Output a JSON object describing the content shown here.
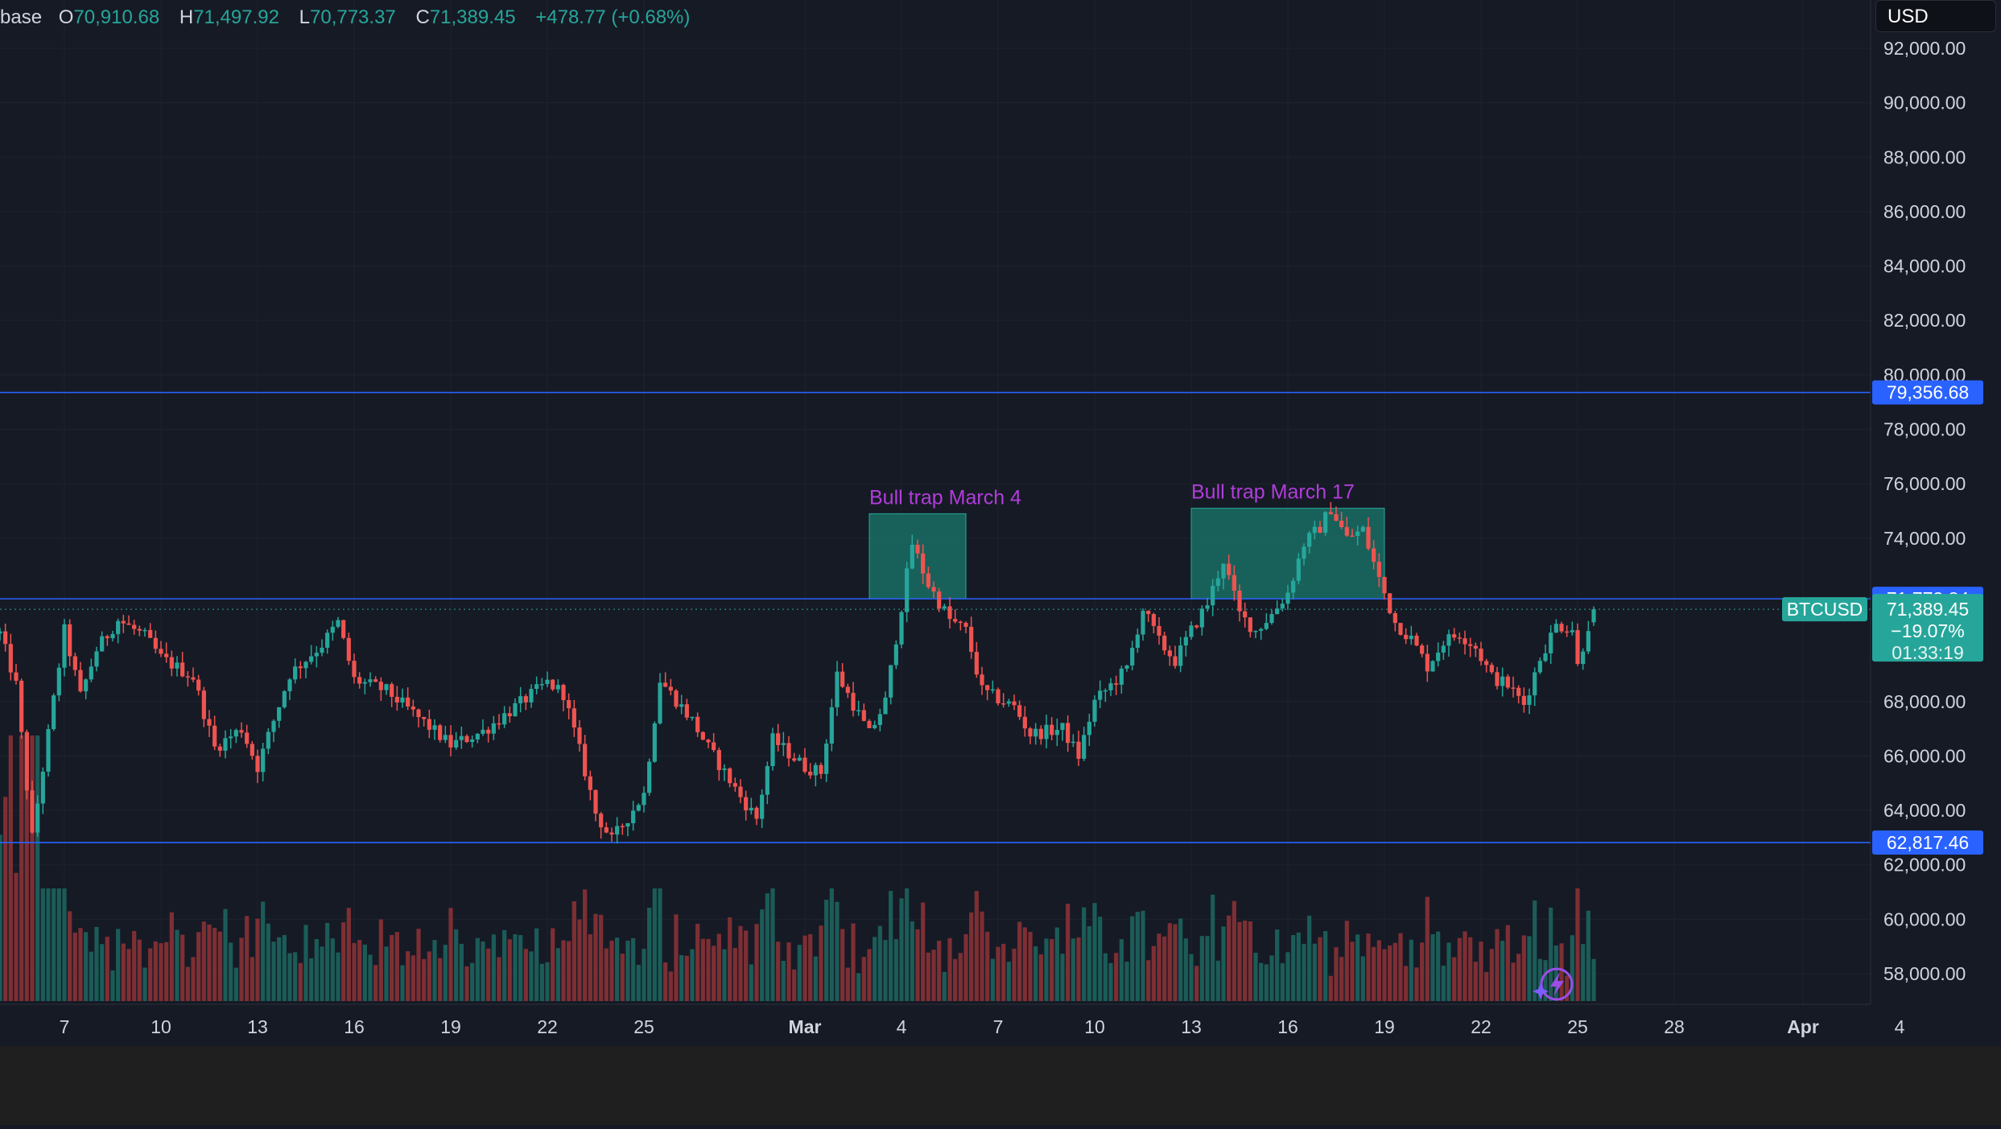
{
  "header": {
    "symbol_fragment": "base",
    "open_key": "O",
    "open": "70,910.68",
    "high_key": "H",
    "high": "71,497.92",
    "low_key": "L",
    "low": "70,773.37",
    "close_key": "C",
    "close": "71,389.45",
    "change": "+478.77 (+0.68%)"
  },
  "currency": "USD",
  "price_axis": {
    "ticks": [
      "92,000.00",
      "90,000.00",
      "88,000.00",
      "86,000.00",
      "84,000.00",
      "82,000.00",
      "80,000.00",
      "78,000.00",
      "76,000.00",
      "74,000.00",
      "68,000.00",
      "66,000.00",
      "64,000.00",
      "62,000.00",
      "60,000.00",
      "58,000.00"
    ],
    "tick_values": [
      92000,
      90000,
      88000,
      86000,
      84000,
      82000,
      80000,
      78000,
      76000,
      74000,
      68000,
      66000,
      64000,
      62000,
      60000,
      58000
    ]
  },
  "time_axis": {
    "labels": [
      "7",
      "10",
      "13",
      "16",
      "19",
      "22",
      "25",
      "Mar",
      "4",
      "7",
      "10",
      "13",
      "16",
      "19",
      "22",
      "25",
      "28",
      "Apr",
      "4"
    ],
    "dates": [
      "2024-02-07",
      "2024-02-10",
      "2024-02-13",
      "2024-02-16",
      "2024-02-19",
      "2024-02-22",
      "2024-02-25",
      "2024-03-01",
      "2024-03-04",
      "2024-03-07",
      "2024-03-10",
      "2024-03-13",
      "2024-03-16",
      "2024-03-19",
      "2024-03-22",
      "2024-03-25",
      "2024-03-28",
      "2024-04-01",
      "2024-04-04"
    ]
  },
  "levels": [
    {
      "value": 79356.68,
      "label": "79,356.68"
    },
    {
      "value": 71773.84,
      "label": "71,773.84"
    },
    {
      "value": 62817.46,
      "label": "62,817.46"
    }
  ],
  "current": {
    "symbol": "BTCUSD",
    "price": 71389.45,
    "price_label": "71,389.45",
    "change_label": "−19.07%",
    "countdown": "01:33:19"
  },
  "annotations": [
    {
      "text": "Bull trap March 4",
      "x_start": "2024-03-03",
      "x_end": "2024-03-06",
      "y_low": 71773.84,
      "y_high": 74900
    },
    {
      "text": "Bull trap March 17",
      "x_start": "2024-03-13",
      "x_end": "2024-03-19",
      "y_low": 71773.84,
      "y_high": 75100
    }
  ],
  "colors": {
    "background": "#161a25",
    "up": "#26a69a",
    "down": "#ef5350",
    "level_line": "#2962ff",
    "annotation_fill": "#1a7a6c",
    "annotation_text": "#b13ddb",
    "axis_text": "#d1d4dc"
  },
  "chart_data": {
    "type": "candlestick",
    "symbol": "BTCUSD",
    "interval": "4h",
    "y_range": [
      57000,
      93000
    ],
    "x_range": [
      "2024-02-05",
      "2024-04-05"
    ],
    "anchors": [
      [
        "2024-02-05T00:00",
        70500
      ],
      [
        "2024-02-05T12:00",
        68600
      ],
      [
        "2024-02-06T00:00",
        63000
      ],
      [
        "2024-02-06T12:00",
        66800
      ],
      [
        "2024-02-07T00:00",
        70600
      ],
      [
        "2024-02-07T12:00",
        68200
      ],
      [
        "2024-02-08T00:00",
        69900
      ],
      [
        "2024-02-08T16:00",
        71000
      ],
      [
        "2024-02-09T12:00",
        70400
      ],
      [
        "2024-02-10T00:00",
        69600
      ],
      [
        "2024-02-11T00:00",
        68900
      ],
      [
        "2024-02-11T16:00",
        66300
      ],
      [
        "2024-02-12T12:00",
        67000
      ],
      [
        "2024-02-13T00:00",
        65600
      ],
      [
        "2024-02-14T00:00",
        69000
      ],
      [
        "2024-02-15T00:00",
        70100
      ],
      [
        "2024-02-15T12:00",
        70900
      ],
      [
        "2024-02-16T00:00",
        68800
      ],
      [
        "2024-02-17T00:00",
        68400
      ],
      [
        "2024-02-18T00:00",
        67400
      ],
      [
        "2024-02-19T00:00",
        66400
      ],
      [
        "2024-02-20T00:00",
        66900
      ],
      [
        "2024-02-21T00:00",
        67800
      ],
      [
        "2024-02-22T00:00",
        68700
      ],
      [
        "2024-02-22T12:00",
        68300
      ],
      [
        "2024-02-23T00:00",
        66200
      ],
      [
        "2024-02-23T12:00",
        63900
      ],
      [
        "2024-02-24T00:00",
        62900
      ],
      [
        "2024-02-25T00:00",
        64600
      ],
      [
        "2024-02-25T12:00",
        68800
      ],
      [
        "2024-02-26T12:00",
        67300
      ],
      [
        "2024-02-27T00:00",
        66300
      ],
      [
        "2024-02-28T00:00",
        64500
      ],
      [
        "2024-02-28T12:00",
        63700
      ],
      [
        "2024-02-29T00:00",
        66600
      ],
      [
        "2024-03-01T00:00",
        65600
      ],
      [
        "2024-03-01T12:00",
        65400
      ],
      [
        "2024-03-02T00:00",
        69000
      ],
      [
        "2024-03-03T00:00",
        66800
      ],
      [
        "2024-03-03T12:00",
        68000
      ],
      [
        "2024-03-04T00:00",
        71500
      ],
      [
        "2024-03-04T08:00",
        73800
      ],
      [
        "2024-03-04T20:00",
        72300
      ],
      [
        "2024-03-05T12:00",
        71000
      ],
      [
        "2024-03-06T00:00",
        70600
      ],
      [
        "2024-03-06T12:00",
        68400
      ],
      [
        "2024-03-07T12:00",
        67800
      ],
      [
        "2024-03-08T00:00",
        66800
      ],
      [
        "2024-03-09T00:00",
        67000
      ],
      [
        "2024-03-09T12:00",
        66000
      ],
      [
        "2024-03-10T00:00",
        68000
      ],
      [
        "2024-03-11T00:00",
        69200
      ],
      [
        "2024-03-11T12:00",
        71400
      ],
      [
        "2024-03-12T00:00",
        70200
      ],
      [
        "2024-03-12T12:00",
        69500
      ],
      [
        "2024-03-13T00:00",
        70600
      ],
      [
        "2024-03-13T12:00",
        71600
      ],
      [
        "2024-03-14T00:00",
        73200
      ],
      [
        "2024-03-14T12:00",
        71200
      ],
      [
        "2024-03-15T00:00",
        70600
      ],
      [
        "2024-03-15T12:00",
        71200
      ],
      [
        "2024-03-16T00:00",
        72000
      ],
      [
        "2024-03-16T12:00",
        73800
      ],
      [
        "2024-03-17T00:00",
        74400
      ],
      [
        "2024-03-17T08:00",
        75100
      ],
      [
        "2024-03-17T20:00",
        74000
      ],
      [
        "2024-03-18T08:00",
        74300
      ],
      [
        "2024-03-18T20:00",
        72500
      ],
      [
        "2024-03-19T08:00",
        70900
      ],
      [
        "2024-03-19T20:00",
        70300
      ],
      [
        "2024-03-20T08:00",
        69300
      ],
      [
        "2024-03-20T20:00",
        70200
      ],
      [
        "2024-03-21T08:00",
        70500
      ],
      [
        "2024-03-21T20:00",
        70000
      ],
      [
        "2024-03-22T08:00",
        68900
      ],
      [
        "2024-03-22T20:00",
        68600
      ],
      [
        "2024-03-23T08:00",
        67900
      ],
      [
        "2024-03-23T20:00",
        69600
      ],
      [
        "2024-03-24T08:00",
        70800
      ],
      [
        "2024-03-24T20:00",
        70700
      ],
      [
        "2024-03-25T00:00",
        69300
      ],
      [
        "2024-03-25T08:00",
        70800
      ],
      [
        "2024-03-25T12:00",
        71389.45
      ]
    ],
    "volume_note": "volume histogram at the bottom of the price pane"
  }
}
